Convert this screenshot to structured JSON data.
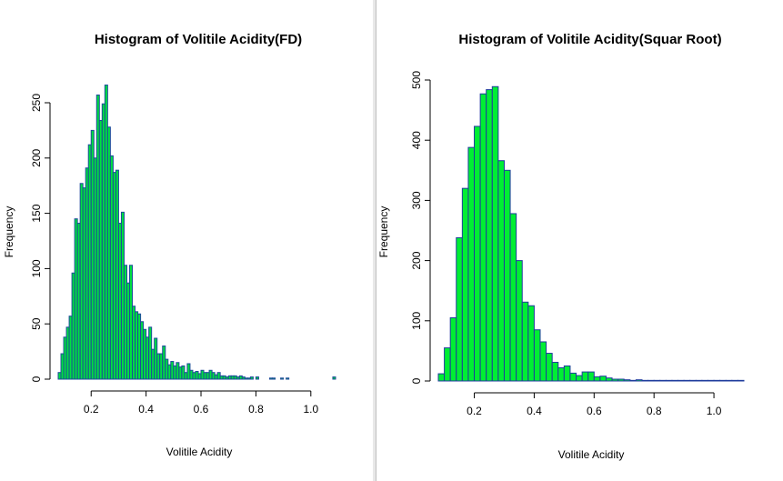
{
  "chart_data": [
    {
      "type": "bar",
      "title": "Histogram of Volitile Acidity(FD)",
      "xlabel": "Volitile Acidity",
      "ylabel": "Frequency",
      "xlim": [
        0.08,
        1.1
      ],
      "ylim": [
        0,
        250
      ],
      "xticks": [
        "0.2",
        "0.4",
        "0.6",
        "0.8",
        "1.0"
      ],
      "yticks": [
        "0",
        "50",
        "100",
        "150",
        "200",
        "250"
      ],
      "bin_start": 0.08,
      "bin_width": 0.01,
      "values": [
        6,
        23,
        38,
        47,
        57,
        96,
        145,
        141,
        177,
        173,
        191,
        212,
        225,
        200,
        257,
        234,
        249,
        266,
        228,
        202,
        187,
        189,
        141,
        151,
        103,
        87,
        103,
        66,
        61,
        59,
        52,
        45,
        38,
        47,
        27,
        37,
        23,
        23,
        30,
        18,
        13,
        16,
        12,
        15,
        11,
        12,
        6,
        14,
        8,
        6,
        7,
        5,
        8,
        6,
        6,
        8,
        6,
        4,
        6,
        3,
        3,
        2,
        3,
        3,
        3,
        2,
        3,
        2,
        1,
        1,
        2,
        0,
        2,
        0,
        0,
        0,
        0,
        1,
        1,
        0,
        0,
        1,
        0,
        1,
        0,
        0,
        0,
        0,
        0,
        0,
        0,
        0,
        0,
        0,
        0,
        0,
        0,
        0,
        0,
        0,
        2
      ],
      "colors": {
        "fill": "#00e040",
        "stroke": "#1c4a9a"
      },
      "grid": false,
      "legend": "none"
    },
    {
      "type": "bar",
      "title": "Histogram of Volitile Acidity(Squar Root)",
      "xlabel": "Volitile Acidity",
      "ylabel": "Frequency",
      "xlim": [
        0.08,
        1.1
      ],
      "ylim": [
        0,
        500
      ],
      "xticks": [
        "0.2",
        "0.4",
        "0.6",
        "0.8",
        "1.0"
      ],
      "yticks": [
        "0",
        "100",
        "200",
        "300",
        "400",
        "500"
      ],
      "bin_start": 0.08,
      "bin_width": 0.02,
      "values": [
        12,
        55,
        105,
        238,
        320,
        388,
        423,
        477,
        484,
        489,
        366,
        350,
        278,
        200,
        131,
        125,
        85,
        65,
        46,
        31,
        22,
        25,
        13,
        9,
        15,
        15,
        7,
        8,
        5,
        3,
        3,
        2,
        1,
        2,
        1,
        1,
        1,
        1,
        1,
        1,
        1,
        1,
        1,
        1,
        1,
        1,
        1,
        1,
        1,
        1,
        1
      ],
      "colors": {
        "fill": "#00ee33",
        "stroke": "#1f3c9c"
      },
      "grid": false,
      "legend": "none"
    }
  ]
}
